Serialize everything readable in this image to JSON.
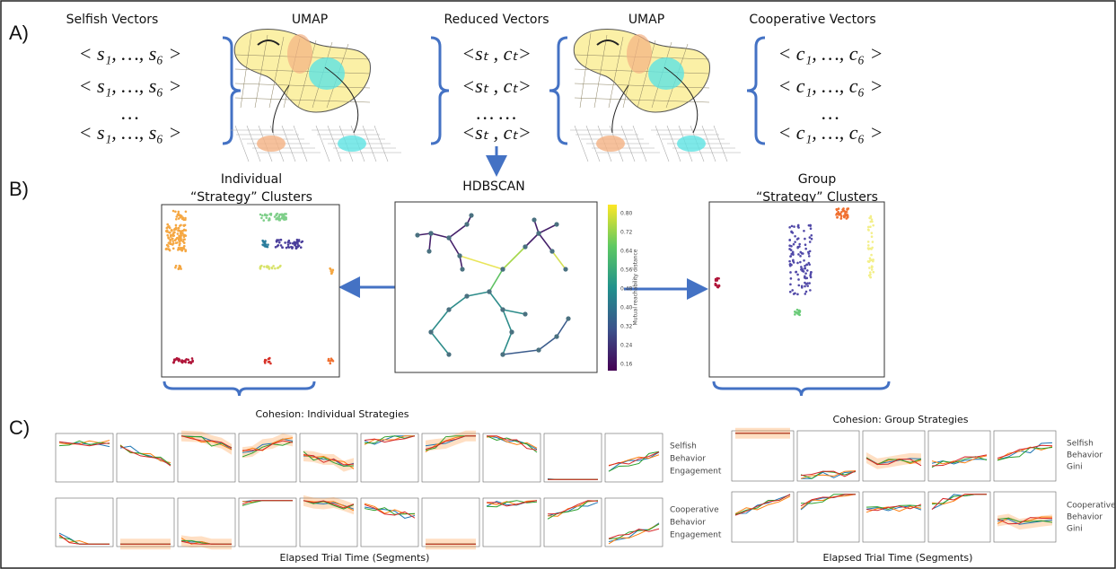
{
  "panels": {
    "a": "A)",
    "b": "B)",
    "c": "C)"
  },
  "umap": {
    "title_left": "Selfish Vectors",
    "umap_labels": [
      "UMAP",
      "UMAP"
    ],
    "title_mid": "Reduced Vectors",
    "title_right": "Cooperative Vectors",
    "selfish_rows": [
      "< s₁, …, s₆ >",
      "< s₁, …, s₆ >",
      "…",
      "< s₁, …, s₆ >"
    ],
    "reduced_rows": [
      "<sₜ ,  cₜ>",
      "<sₜ ,  cₜ>",
      "…       …",
      "<sₜ ,  cₜ>"
    ],
    "coop_rows": [
      "< c₁, …, c₆ >",
      "< c₁, …, c₆ >",
      "…",
      "< c₁, …, c₆ >"
    ]
  },
  "clustering": {
    "individual_title": [
      "Individual",
      "“Strategy” Clusters"
    ],
    "hdbscan": "HDBSCAN",
    "colorbar_label": "Mutual reachability distance",
    "colorbar_ticks": [
      "0.80",
      "0.72",
      "0.64",
      "0.56",
      "0.48",
      "0.40",
      "0.32",
      "0.24",
      "0.16"
    ],
    "group_title": [
      "Group",
      "“Strategy” Clusters"
    ]
  },
  "cohesion": {
    "individual_title": "Cohesion: Individual Strategies",
    "group_title": "Cohesion: Group Strategies",
    "individual_rows": [
      [
        "Selfish",
        "Behavior",
        "Engagement"
      ],
      [
        "Cooperative",
        "Behavior",
        "Engagement"
      ]
    ],
    "group_rows": [
      [
        "Selfish",
        "Behavior",
        "Gini"
      ],
      [
        "Cooperative",
        "Behavior",
        "Gini"
      ]
    ],
    "x_label_individual": "Elapsed Trial Time (Segments)",
    "x_label_group": "Elapsed Trial Time (Segments)"
  }
}
